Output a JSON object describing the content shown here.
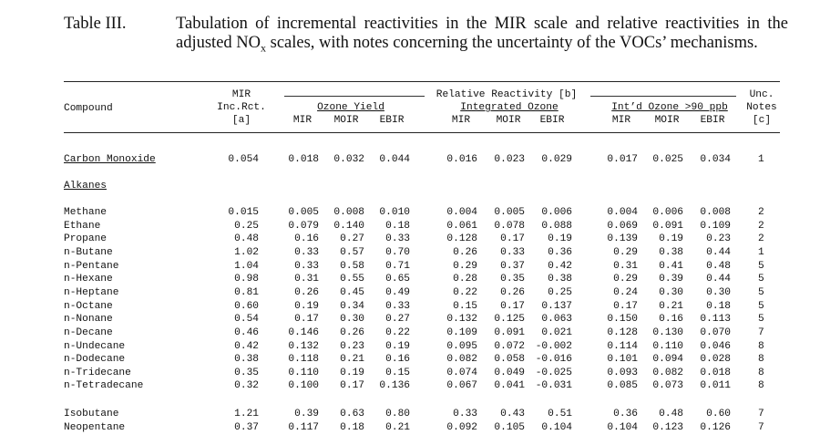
{
  "header": {
    "table_label": "Table III.",
    "caption_line1": "Tabulation of incremental reactivities in the MIR scale and relative reactivities in the",
    "caption_line2_pre": "adjusted NO",
    "caption_line2_sub": "x",
    "caption_line2_post": " scales, with notes concerning the uncertainty of the VOCs’ mechanisms."
  },
  "columns": {
    "compound": "Compound",
    "mir_top": "MIR",
    "mir_mid": "Inc.Rct.",
    "mir_bot": "[a]",
    "rel_group": "Relative Reactivity [b]",
    "ozone_yield": "Ozone Yield",
    "integrated_ozone": "Integrated Ozone",
    "intd_ozone": "Int’d Ozone >90 ppb",
    "sub_mir": "MIR",
    "sub_moir": "MOIR",
    "sub_ebir": "EBIR",
    "unc_top": "Unc.",
    "unc_mid": "Notes",
    "unc_bot": "[c]"
  },
  "carbon_monoxide": {
    "name": "Carbon Monoxide",
    "values": [
      "0.054",
      "0.018",
      "0.032",
      "0.044",
      "0.016",
      "0.023",
      "0.029",
      "0.017",
      "0.025",
      "0.034",
      "1"
    ]
  },
  "section_alkanes": "Alkanes",
  "rows": [
    {
      "name": "Methane",
      "values": [
        "0.015",
        "0.005",
        "0.008",
        "0.010",
        "0.004",
        "0.005",
        "0.006",
        "0.004",
        "0.006",
        "0.008",
        "2"
      ]
    },
    {
      "name": "Ethane",
      "values": [
        "0.25",
        "0.079",
        "0.140",
        "0.18",
        "0.061",
        "0.078",
        "0.088",
        "0.069",
        "0.091",
        "0.109",
        "2"
      ]
    },
    {
      "name": "Propane",
      "values": [
        "0.48",
        "0.16",
        "0.27",
        "0.33",
        "0.128",
        "0.17",
        "0.19",
        "0.139",
        "0.19",
        "0.23",
        "2"
      ]
    },
    {
      "name": "n-Butane",
      "values": [
        "1.02",
        "0.33",
        "0.57",
        "0.70",
        "0.26",
        "0.33",
        "0.36",
        "0.29",
        "0.38",
        "0.44",
        "1"
      ]
    },
    {
      "name": "n-Pentane",
      "values": [
        "1.04",
        "0.33",
        "0.58",
        "0.71",
        "0.29",
        "0.37",
        "0.42",
        "0.31",
        "0.41",
        "0.48",
        "5"
      ]
    },
    {
      "name": "n-Hexane",
      "values": [
        "0.98",
        "0.31",
        "0.55",
        "0.65",
        "0.28",
        "0.35",
        "0.38",
        "0.29",
        "0.39",
        "0.44",
        "5"
      ]
    },
    {
      "name": "n-Heptane",
      "values": [
        "0.81",
        "0.26",
        "0.45",
        "0.49",
        "0.22",
        "0.26",
        "0.25",
        "0.24",
        "0.30",
        "0.30",
        "5"
      ]
    },
    {
      "name": "n-Octane",
      "values": [
        "0.60",
        "0.19",
        "0.34",
        "0.33",
        "0.15",
        "0.17",
        "0.137",
        "0.17",
        "0.21",
        "0.18",
        "5"
      ]
    },
    {
      "name": "n-Nonane",
      "values": [
        "0.54",
        "0.17",
        "0.30",
        "0.27",
        "0.132",
        "0.125",
        "0.063",
        "0.150",
        "0.16",
        "0.113",
        "5"
      ]
    },
    {
      "name": "n-Decane",
      "values": [
        "0.46",
        "0.146",
        "0.26",
        "0.22",
        "0.109",
        "0.091",
        "0.021",
        "0.128",
        "0.130",
        "0.070",
        "7"
      ]
    },
    {
      "name": "n-Undecane",
      "values": [
        "0.42",
        "0.132",
        "0.23",
        "0.19",
        "0.095",
        "0.072",
        "-0.002",
        "0.114",
        "0.110",
        "0.046",
        "8"
      ]
    },
    {
      "name": "n-Dodecane",
      "values": [
        "0.38",
        "0.118",
        "0.21",
        "0.16",
        "0.082",
        "0.058",
        "-0.016",
        "0.101",
        "0.094",
        "0.028",
        "8"
      ]
    },
    {
      "name": "n-Tridecane",
      "values": [
        "0.35",
        "0.110",
        "0.19",
        "0.15",
        "0.074",
        "0.049",
        "-0.025",
        "0.093",
        "0.082",
        "0.018",
        "8"
      ]
    },
    {
      "name": "n-Tetradecane",
      "values": [
        "0.32",
        "0.100",
        "0.17",
        "0.136",
        "0.067",
        "0.041",
        "-0.031",
        "0.085",
        "0.073",
        "0.011",
        "8"
      ]
    }
  ],
  "rows2": [
    {
      "name": "Isobutane",
      "values": [
        "1.21",
        "0.39",
        "0.63",
        "0.80",
        "0.33",
        "0.43",
        "0.51",
        "0.36",
        "0.48",
        "0.60",
        "7"
      ]
    },
    {
      "name": "Neopentane",
      "values": [
        "0.37",
        "0.117",
        "0.18",
        "0.21",
        "0.092",
        "0.105",
        "0.104",
        "0.104",
        "0.123",
        "0.126",
        "7"
      ]
    }
  ]
}
